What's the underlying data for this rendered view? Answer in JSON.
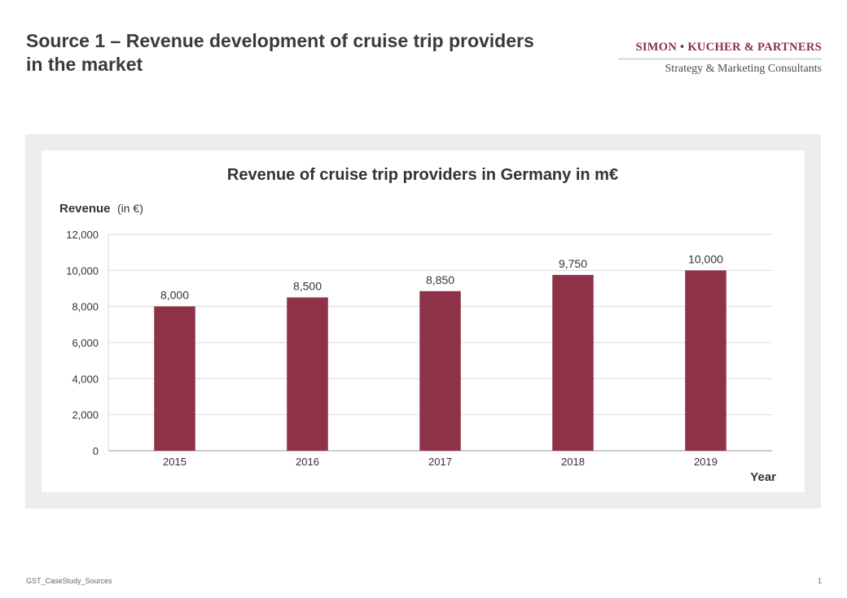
{
  "slide": {
    "title": "Source 1 – Revenue development of cruise trip providers in the market",
    "logo_name": "SIMON • KUCHER & PARTNERS",
    "logo_tagline": "Strategy & Marketing Consultants",
    "footer_left": "GST_CaseStudy_Sources",
    "page_number": "1"
  },
  "chart_data": {
    "type": "bar",
    "title": "Revenue of cruise trip providers in Germany in m€",
    "ylabel": "Revenue",
    "ylabel_unit": "(in €)",
    "xlabel": "Year",
    "categories": [
      "2015",
      "2016",
      "2017",
      "2018",
      "2019"
    ],
    "values": [
      8000,
      8500,
      8850,
      9750,
      10000
    ],
    "data_labels": [
      "8,000",
      "8,500",
      "8,850",
      "9,750",
      "10,000"
    ],
    "ylim": [
      0,
      12000
    ],
    "yticks": [
      0,
      2000,
      4000,
      6000,
      8000,
      10000,
      12000
    ],
    "ytick_labels": [
      "0",
      "2,000",
      "4,000",
      "6,000",
      "8,000",
      "10,000",
      "12,000"
    ],
    "grid": true,
    "legend": "none",
    "bar_color": "#8e3347"
  }
}
